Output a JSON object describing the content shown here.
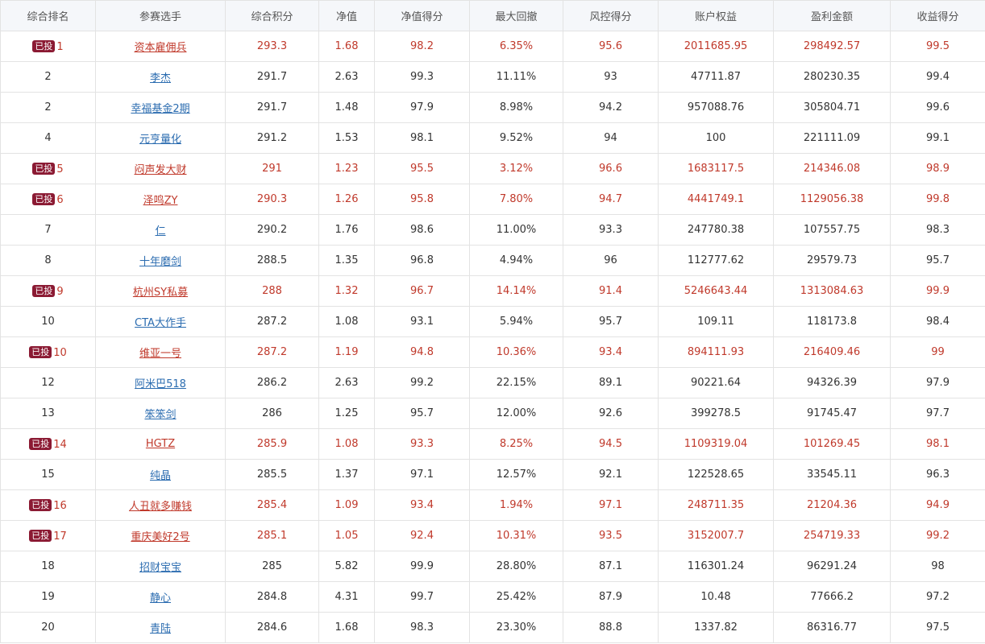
{
  "colors": {
    "invested_text": "#c0392b",
    "link": "#2b6cb0",
    "badge_bg": "#8b1a33"
  },
  "table": {
    "badge_label": "已投",
    "headers": [
      "综合排名",
      "参赛选手",
      "综合积分",
      "净值",
      "净值得分",
      "最大回撤",
      "风控得分",
      "账户权益",
      "盈利金额",
      "收益得分"
    ],
    "rows": [
      {
        "invested": true,
        "rank": "1",
        "name": "资本雇佣兵",
        "score": "293.3",
        "nav": "1.68",
        "nav_score": "98.2",
        "drawdown": "6.35%",
        "risk_score": "95.6",
        "equity": "2011685.95",
        "profit": "298492.57",
        "return_score": "99.5"
      },
      {
        "invested": false,
        "rank": "2",
        "name": "李杰",
        "score": "291.7",
        "nav": "2.63",
        "nav_score": "99.3",
        "drawdown": "11.11%",
        "risk_score": "93",
        "equity": "47711.87",
        "profit": "280230.35",
        "return_score": "99.4"
      },
      {
        "invested": false,
        "rank": "2",
        "name": "幸福基金2期",
        "score": "291.7",
        "nav": "1.48",
        "nav_score": "97.9",
        "drawdown": "8.98%",
        "risk_score": "94.2",
        "equity": "957088.76",
        "profit": "305804.71",
        "return_score": "99.6"
      },
      {
        "invested": false,
        "rank": "4",
        "name": "元亨量化",
        "score": "291.2",
        "nav": "1.53",
        "nav_score": "98.1",
        "drawdown": "9.52%",
        "risk_score": "94",
        "equity": "100",
        "profit": "221111.09",
        "return_score": "99.1"
      },
      {
        "invested": true,
        "rank": "5",
        "name": "闷声发大财",
        "score": "291",
        "nav": "1.23",
        "nav_score": "95.5",
        "drawdown": "3.12%",
        "risk_score": "96.6",
        "equity": "1683117.5",
        "profit": "214346.08",
        "return_score": "98.9"
      },
      {
        "invested": true,
        "rank": "6",
        "name": "泽鸣ZY",
        "score": "290.3",
        "nav": "1.26",
        "nav_score": "95.8",
        "drawdown": "7.80%",
        "risk_score": "94.7",
        "equity": "4441749.1",
        "profit": "1129056.38",
        "return_score": "99.8"
      },
      {
        "invested": false,
        "rank": "7",
        "name": "仁",
        "score": "290.2",
        "nav": "1.76",
        "nav_score": "98.6",
        "drawdown": "11.00%",
        "risk_score": "93.3",
        "equity": "247780.38",
        "profit": "107557.75",
        "return_score": "98.3"
      },
      {
        "invested": false,
        "rank": "8",
        "name": "十年磨剑",
        "score": "288.5",
        "nav": "1.35",
        "nav_score": "96.8",
        "drawdown": "4.94%",
        "risk_score": "96",
        "equity": "112777.62",
        "profit": "29579.73",
        "return_score": "95.7"
      },
      {
        "invested": true,
        "rank": "9",
        "name": "杭州SY私募",
        "score": "288",
        "nav": "1.32",
        "nav_score": "96.7",
        "drawdown": "14.14%",
        "risk_score": "91.4",
        "equity": "5246643.44",
        "profit": "1313084.63",
        "return_score": "99.9"
      },
      {
        "invested": false,
        "rank": "10",
        "name": "CTA大作手",
        "score": "287.2",
        "nav": "1.08",
        "nav_score": "93.1",
        "drawdown": "5.94%",
        "risk_score": "95.7",
        "equity": "109.11",
        "profit": "118173.8",
        "return_score": "98.4"
      },
      {
        "invested": true,
        "rank": "10",
        "name": "维亚一号",
        "score": "287.2",
        "nav": "1.19",
        "nav_score": "94.8",
        "drawdown": "10.36%",
        "risk_score": "93.4",
        "equity": "894111.93",
        "profit": "216409.46",
        "return_score": "99"
      },
      {
        "invested": false,
        "rank": "12",
        "name": "阿米巴518",
        "score": "286.2",
        "nav": "2.63",
        "nav_score": "99.2",
        "drawdown": "22.15%",
        "risk_score": "89.1",
        "equity": "90221.64",
        "profit": "94326.39",
        "return_score": "97.9"
      },
      {
        "invested": false,
        "rank": "13",
        "name": "笨笨剑",
        "score": "286",
        "nav": "1.25",
        "nav_score": "95.7",
        "drawdown": "12.00%",
        "risk_score": "92.6",
        "equity": "399278.5",
        "profit": "91745.47",
        "return_score": "97.7"
      },
      {
        "invested": true,
        "rank": "14",
        "name": "HGTZ",
        "score": "285.9",
        "nav": "1.08",
        "nav_score": "93.3",
        "drawdown": "8.25%",
        "risk_score": "94.5",
        "equity": "1109319.04",
        "profit": "101269.45",
        "return_score": "98.1"
      },
      {
        "invested": false,
        "rank": "15",
        "name": "纯晶",
        "score": "285.5",
        "nav": "1.37",
        "nav_score": "97.1",
        "drawdown": "12.57%",
        "risk_score": "92.1",
        "equity": "122528.65",
        "profit": "33545.11",
        "return_score": "96.3"
      },
      {
        "invested": true,
        "rank": "16",
        "name": "人丑就多赚钱",
        "score": "285.4",
        "nav": "1.09",
        "nav_score": "93.4",
        "drawdown": "1.94%",
        "risk_score": "97.1",
        "equity": "248711.35",
        "profit": "21204.36",
        "return_score": "94.9"
      },
      {
        "invested": true,
        "rank": "17",
        "name": "重庆美好2号",
        "score": "285.1",
        "nav": "1.05",
        "nav_score": "92.4",
        "drawdown": "10.31%",
        "risk_score": "93.5",
        "equity": "3152007.7",
        "profit": "254719.33",
        "return_score": "99.2"
      },
      {
        "invested": false,
        "rank": "18",
        "name": "招财宝宝",
        "score": "285",
        "nav": "5.82",
        "nav_score": "99.9",
        "drawdown": "28.80%",
        "risk_score": "87.1",
        "equity": "116301.24",
        "profit": "96291.24",
        "return_score": "98"
      },
      {
        "invested": false,
        "rank": "19",
        "name": "静心",
        "score": "284.8",
        "nav": "4.31",
        "nav_score": "99.7",
        "drawdown": "25.42%",
        "risk_score": "87.9",
        "equity": "10.48",
        "profit": "77666.2",
        "return_score": "97.2"
      },
      {
        "invested": false,
        "rank": "20",
        "name": "青陆",
        "score": "284.6",
        "nav": "1.68",
        "nav_score": "98.3",
        "drawdown": "23.30%",
        "risk_score": "88.8",
        "equity": "1337.82",
        "profit": "86316.77",
        "return_score": "97.5"
      }
    ]
  }
}
